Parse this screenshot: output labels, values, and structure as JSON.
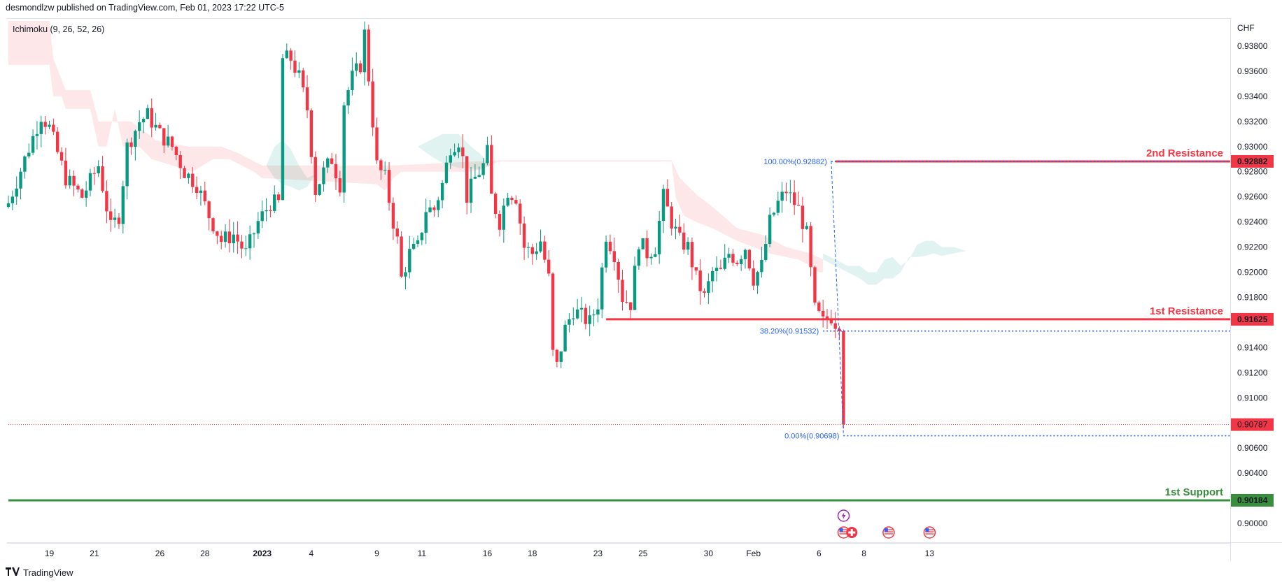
{
  "header": {
    "publish_text": "desmondlzw published on TradingView.com, Feb 01, 2023 17:22 UTC-5"
  },
  "indicator_label": "Ichimoku (9, 26, 52, 26)",
  "currency": "CHF",
  "footer": {
    "brand": "TradingView"
  },
  "chart_data": {
    "type": "candlestick",
    "ylim": [
      0.8985,
      0.94
    ],
    "y_ticks": [
      "0.90000",
      "0.90200",
      "0.90400",
      "0.90600",
      "0.90800",
      "0.91000",
      "0.91200",
      "0.91400",
      "0.91600",
      "0.91800",
      "0.92000",
      "0.92200",
      "0.92400",
      "0.92600",
      "0.92800",
      "0.93000",
      "0.93200",
      "0.93400",
      "0.93600",
      "0.93800"
    ],
    "x_ticks": [
      {
        "label": "19",
        "idx": 10
      },
      {
        "label": "21",
        "idx": 21
      },
      {
        "label": "26",
        "idx": 37
      },
      {
        "label": "28",
        "idx": 48
      },
      {
        "label": "2023",
        "idx": 62,
        "bold": true
      },
      {
        "label": "4",
        "idx": 74
      },
      {
        "label": "9",
        "idx": 90
      },
      {
        "label": "11",
        "idx": 101
      },
      {
        "label": "16",
        "idx": 117
      },
      {
        "label": "18",
        "idx": 128
      },
      {
        "label": "23",
        "idx": 144
      },
      {
        "label": "25",
        "idx": 155
      },
      {
        "label": "30",
        "idx": 171
      },
      {
        "label": "Feb",
        "idx": 182
      },
      {
        "label": "6",
        "idx": 198
      },
      {
        "label": "8",
        "idx": 209
      },
      {
        "label": "13",
        "idx": 225
      }
    ],
    "close_path": [
      [
        0,
        0.9255
      ],
      [
        4,
        0.929
      ],
      [
        8,
        0.9325
      ],
      [
        10,
        0.9315
      ],
      [
        14,
        0.9275
      ],
      [
        18,
        0.926
      ],
      [
        22,
        0.9285
      ],
      [
        25,
        0.9235
      ],
      [
        27,
        0.9245
      ],
      [
        29,
        0.93
      ],
      [
        32,
        0.932
      ],
      [
        34,
        0.9325
      ],
      [
        37,
        0.931
      ],
      [
        40,
        0.93
      ],
      [
        43,
        0.928
      ],
      [
        46,
        0.927
      ],
      [
        49,
        0.9245
      ],
      [
        52,
        0.9225
      ],
      [
        55,
        0.923
      ],
      [
        58,
        0.9215
      ],
      [
        61,
        0.924
      ],
      [
        64,
        0.9255
      ],
      [
        66,
        0.9255
      ],
      [
        67,
        0.937
      ],
      [
        69,
        0.937
      ],
      [
        71,
        0.9355
      ],
      [
        73,
        0.933
      ],
      [
        75,
        0.9265
      ],
      [
        77,
        0.928
      ],
      [
        79,
        0.929
      ],
      [
        81,
        0.927
      ],
      [
        82,
        0.9335
      ],
      [
        84,
        0.9355
      ],
      [
        86,
        0.9365
      ],
      [
        87,
        0.939
      ],
      [
        88,
        0.9355
      ],
      [
        90,
        0.9285
      ],
      [
        92,
        0.9275
      ],
      [
        94,
        0.924
      ],
      [
        95,
        0.9225
      ],
      [
        96,
        0.9195
      ],
      [
        98,
        0.9215
      ],
      [
        100,
        0.922
      ],
      [
        102,
        0.925
      ],
      [
        104,
        0.925
      ],
      [
        106,
        0.927
      ],
      [
        108,
        0.93
      ],
      [
        110,
        0.9305
      ],
      [
        111,
        0.929
      ],
      [
        112,
        0.926
      ],
      [
        114,
        0.9275
      ],
      [
        116,
        0.9285
      ],
      [
        117,
        0.9295
      ],
      [
        118,
        0.926
      ],
      [
        120,
        0.924
      ],
      [
        122,
        0.9265
      ],
      [
        124,
        0.926
      ],
      [
        126,
        0.922
      ],
      [
        128,
        0.9215
      ],
      [
        130,
        0.9225
      ],
      [
        132,
        0.9195
      ],
      [
        133,
        0.9135
      ],
      [
        134,
        0.9125
      ],
      [
        136,
        0.9155
      ],
      [
        138,
        0.917
      ],
      [
        140,
        0.9165
      ],
      [
        142,
        0.916
      ],
      [
        144,
        0.9175
      ],
      [
        146,
        0.923
      ],
      [
        148,
        0.9215
      ],
      [
        150,
        0.918
      ],
      [
        152,
        0.9175
      ],
      [
        154,
        0.9225
      ],
      [
        156,
        0.9215
      ],
      [
        158,
        0.922
      ],
      [
        160,
        0.926
      ],
      [
        162,
        0.924
      ],
      [
        164,
        0.9225
      ],
      [
        166,
        0.922
      ],
      [
        168,
        0.9195
      ],
      [
        170,
        0.918
      ],
      [
        172,
        0.92
      ],
      [
        174,
        0.92
      ],
      [
        176,
        0.9215
      ],
      [
        178,
        0.921
      ],
      [
        180,
        0.922
      ],
      [
        182,
        0.9195
      ],
      [
        184,
        0.9205
      ],
      [
        186,
        0.924
      ],
      [
        188,
        0.9255
      ],
      [
        190,
        0.9265
      ],
      [
        191,
        0.926
      ],
      [
        193,
        0.925
      ],
      [
        195,
        0.923
      ],
      [
        196,
        0.92
      ],
      [
        197,
        0.917
      ],
      [
        199,
        0.916
      ],
      [
        201,
        0.9165
      ],
      [
        202,
        0.916
      ],
      [
        203,
        0.916
      ],
      [
        204,
        0.9079
      ]
    ],
    "cloud": {
      "red": [
        [
          0,
          0.9365
        ],
        [
          10,
          0.9365
        ],
        [
          11,
          0.934
        ],
        [
          13,
          0.934
        ],
        [
          14,
          0.933
        ],
        [
          20,
          0.933
        ],
        [
          22,
          0.93
        ],
        [
          24,
          0.93
        ],
        [
          26,
          0.933
        ],
        [
          28,
          0.93
        ],
        [
          32,
          0.93
        ],
        [
          35,
          0.929
        ],
        [
          40,
          0.9285
        ],
        [
          45,
          0.928
        ],
        [
          50,
          0.929
        ],
        [
          54,
          0.929
        ],
        [
          57,
          0.9285
        ],
        [
          60,
          0.928
        ],
        [
          62,
          0.9275
        ],
        [
          90,
          0.927
        ],
        [
          92,
          0.9265
        ],
        [
          94,
          0.9275
        ],
        [
          96,
          0.928
        ],
        [
          100,
          0.928
        ],
        [
          104,
          0.928
        ],
        [
          110,
          0.928
        ],
        [
          113,
          0.928
        ],
        [
          116,
          0.9282
        ],
        [
          118,
          0.9286
        ],
        [
          120,
          0.9288
        ],
        [
          132,
          0.9288
        ],
        [
          140,
          0.9288
        ],
        [
          146,
          0.9288
        ],
        [
          150,
          0.9288
        ],
        [
          162,
          0.9288
        ],
        [
          163,
          0.926
        ],
        [
          165,
          0.9245
        ],
        [
          168,
          0.924
        ],
        [
          172,
          0.9235
        ],
        [
          178,
          0.9225
        ],
        [
          182,
          0.922
        ],
        [
          186,
          0.9215
        ],
        [
          190,
          0.9212
        ],
        [
          193,
          0.921
        ],
        [
          196,
          0.9205
        ],
        [
          198,
          0.92
        ],
        [
          199,
          0.92
        ]
      ],
      "red_base": [
        [
          0,
          0.94
        ],
        [
          10,
          0.94
        ],
        [
          11,
          0.937
        ],
        [
          14,
          0.9345
        ],
        [
          20,
          0.9345
        ],
        [
          22,
          0.932
        ],
        [
          30,
          0.932
        ],
        [
          36,
          0.9305
        ],
        [
          44,
          0.93
        ],
        [
          52,
          0.93
        ],
        [
          56,
          0.9295
        ],
        [
          62,
          0.9285
        ],
        [
          90,
          0.9285
        ],
        [
          94,
          0.9285
        ],
        [
          120,
          0.9289
        ],
        [
          150,
          0.9289
        ],
        [
          162,
          0.9289
        ],
        [
          164,
          0.9275
        ],
        [
          168,
          0.9262
        ],
        [
          172,
          0.9252
        ],
        [
          178,
          0.9235
        ],
        [
          184,
          0.923
        ],
        [
          190,
          0.922
        ],
        [
          196,
          0.9215
        ],
        [
          199,
          0.921
        ]
      ],
      "green": [
        {
          "top": [
            [
              63,
              0.9285
            ],
            [
              65,
              0.93
            ],
            [
              67,
              0.9305
            ],
            [
              69,
              0.9298
            ],
            [
              71,
              0.9285
            ],
            [
              73,
              0.9275
            ],
            [
              75,
              0.9278
            ]
          ],
          "bot": [
            [
              75,
              0.9278
            ],
            [
              73,
              0.9268
            ],
            [
              71,
              0.9265
            ],
            [
              69,
              0.9268
            ],
            [
              67,
              0.927
            ],
            [
              65,
              0.9275
            ],
            [
              63,
              0.9285
            ]
          ]
        },
        {
          "top": [
            [
              100,
              0.93
            ],
            [
              103,
              0.9305
            ],
            [
              106,
              0.931
            ],
            [
              110,
              0.931
            ],
            [
              113,
              0.93
            ],
            [
              115,
              0.9295
            ],
            [
              118,
              0.9285
            ]
          ],
          "bot": [
            [
              118,
              0.9285
            ],
            [
              115,
              0.9282
            ],
            [
              110,
              0.9283
            ],
            [
              106,
              0.9287
            ],
            [
              103,
              0.9293
            ],
            [
              100,
              0.93
            ]
          ]
        },
        {
          "top": [
            [
              199,
              0.9215
            ],
            [
              202,
              0.921
            ],
            [
              205,
              0.9205
            ],
            [
              208,
              0.9205
            ],
            [
              210,
              0.92
            ],
            [
              212,
              0.92
            ],
            [
              214,
              0.921
            ],
            [
              216,
              0.9212
            ],
            [
              218,
              0.9205
            ],
            [
              220,
              0.921
            ],
            [
              222,
              0.9222
            ],
            [
              224,
              0.9225
            ],
            [
              226,
              0.9225
            ],
            [
              228,
              0.922
            ],
            [
              231,
              0.922
            ],
            [
              234,
              0.9217
            ]
          ],
          "bot": [
            [
              234,
              0.9217
            ],
            [
              231,
              0.9215
            ],
            [
              228,
              0.9213
            ],
            [
              226,
              0.9215
            ],
            [
              224,
              0.9213
            ],
            [
              222,
              0.9212
            ],
            [
              220,
              0.9212
            ],
            [
              218,
              0.92
            ],
            [
              216,
              0.9195
            ],
            [
              214,
              0.9195
            ],
            [
              212,
              0.919
            ],
            [
              210,
              0.919
            ],
            [
              208,
              0.9195
            ],
            [
              205,
              0.92
            ],
            [
              202,
              0.9205
            ],
            [
              199,
              0.921
            ]
          ]
        }
      ]
    },
    "levels": [
      {
        "name": "2nd Resistance",
        "price": 0.92882,
        "label": "0.92882",
        "color": "#f23645",
        "start_idx": 202,
        "width": 3
      },
      {
        "name": "1st Resistance",
        "price": 0.91625,
        "label": "0.91625",
        "color": "#f23645",
        "start_idx": 146,
        "width": 3
      },
      {
        "name": "1st Support",
        "price": 0.90184,
        "label": "0.90184",
        "color": "#388e3c",
        "start_idx": 0,
        "width": 3
      }
    ],
    "current_price": {
      "price": 0.90787,
      "label": "0.90787",
      "color": "#f23645"
    },
    "fib": [
      {
        "label": "100.00%(0.92882)",
        "price": 0.92882,
        "start_idx": 201
      },
      {
        "label": "38.20%(0.91532)",
        "price": 0.91532,
        "start_idx": 199
      },
      {
        "label": "0.00%(0.90698)",
        "price": 0.90698,
        "start_idx": 204
      }
    ],
    "fib_trend": {
      "from": [
        201,
        0.92882
      ],
      "to": [
        204,
        0.90698
      ]
    },
    "colors": {
      "up": "#089981",
      "down": "#f23645",
      "fib": "#2962ff",
      "cloud_red": "rgba(242,54,69,0.12)",
      "cloud_green": "rgba(8,153,129,0.12)"
    },
    "events": [
      {
        "icon": "lightning-icon",
        "idx": 203,
        "row": 0
      },
      {
        "icon": "us-flag-icon",
        "idx": 203,
        "row": 1
      },
      {
        "icon": "swiss-flag-icon",
        "idx": 205,
        "row": 1
      },
      {
        "icon": "us-flag-icon",
        "idx": 214,
        "row": 1
      },
      {
        "icon": "us-flag-icon",
        "idx": 224,
        "row": 1
      }
    ]
  }
}
